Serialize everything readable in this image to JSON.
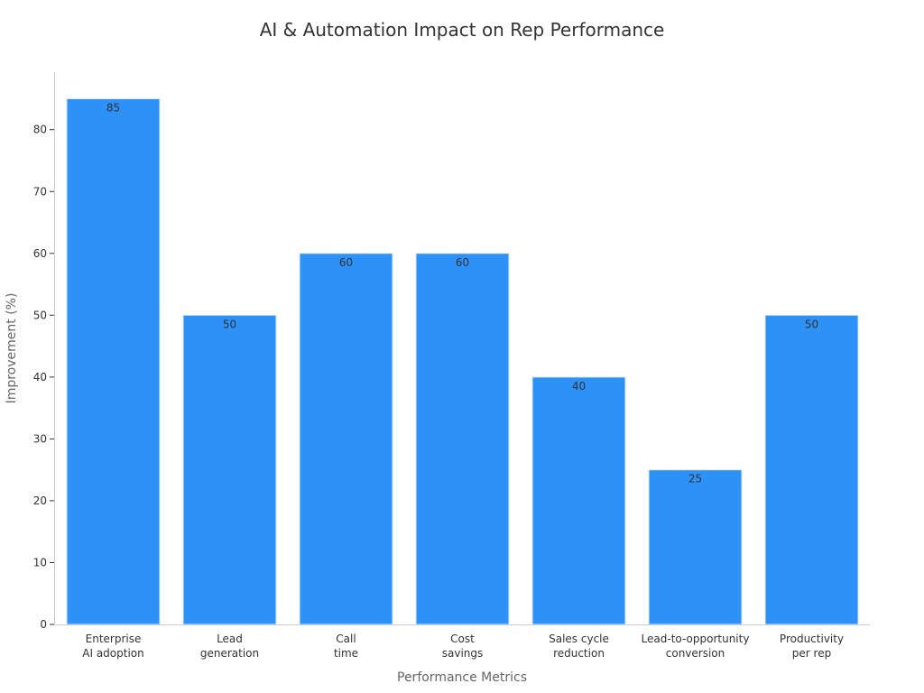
{
  "chart_data": {
    "type": "bar",
    "title": "AI & Automation Impact on Rep Performance",
    "xlabel": "Performance Metrics",
    "ylabel": "Improvement (%)",
    "categories": [
      [
        "Enterprise",
        "AI adoption"
      ],
      [
        "Lead",
        "generation"
      ],
      [
        "Call",
        "time"
      ],
      [
        "Cost",
        "savings"
      ],
      [
        "Sales cycle",
        "reduction"
      ],
      [
        "Lead-to-opportunity",
        "conversion"
      ],
      [
        "Productivity",
        "per rep"
      ]
    ],
    "values": [
      85,
      50,
      60,
      60,
      40,
      25,
      50
    ],
    "ylim": [
      0,
      89.3
    ],
    "yticks": [
      0,
      10,
      20,
      30,
      40,
      50,
      60,
      70,
      80
    ],
    "grid": false,
    "bar_color": "#2e91f8",
    "data_labels": true
  }
}
